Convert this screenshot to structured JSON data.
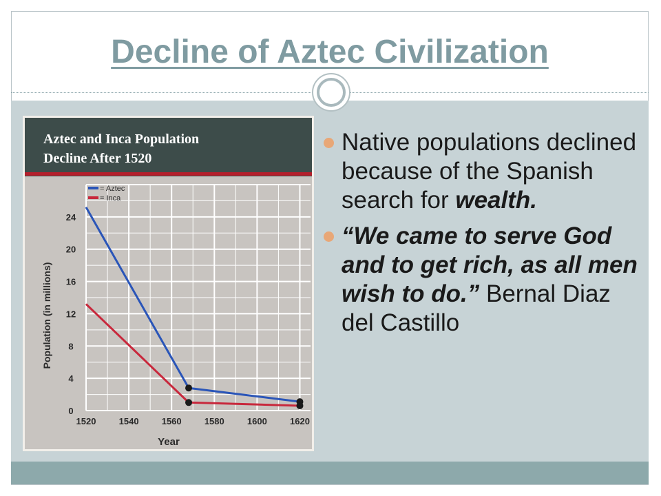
{
  "slide": {
    "title": "Decline of Aztec Civilization",
    "bullets": [
      {
        "part1": "Native populations declined because of the Spanish search for ",
        "emph": "wealth."
      },
      {
        "quote": "“We came to serve God and to get rich, as all men wish to do.”",
        "attribution": " Bernal Diaz del Castillo"
      }
    ]
  },
  "colors": {
    "title": "#7f9ba1",
    "band": "#c7d3d6",
    "footer": "#8da9ab",
    "bullet": "#e8a777",
    "chart_header": "#3d4c4a",
    "chart_plot": "#c8c4c0",
    "aztec": "#2a55b8",
    "inca": "#c8283c"
  },
  "chart_data": {
    "type": "line",
    "title": "Aztec and Inca Population Decline After 1520",
    "xlabel": "Year",
    "ylabel": "Population (in millions)",
    "x_ticks": [
      1520,
      1540,
      1560,
      1580,
      1600,
      1620
    ],
    "y_ticks": [
      0,
      4,
      8,
      12,
      16,
      20,
      24
    ],
    "xlim": [
      1520,
      1625
    ],
    "ylim": [
      0,
      28
    ],
    "grid": true,
    "legend_position": "top-left",
    "series": [
      {
        "name": "Aztec",
        "color": "#2a55b8",
        "x": [
          1520,
          1568,
          1620
        ],
        "y": [
          25.2,
          2.8,
          1.1
        ]
      },
      {
        "name": "Inca",
        "color": "#c8283c",
        "x": [
          1520,
          1568,
          1620
        ],
        "y": [
          13.2,
          1.0,
          0.6
        ]
      }
    ]
  }
}
